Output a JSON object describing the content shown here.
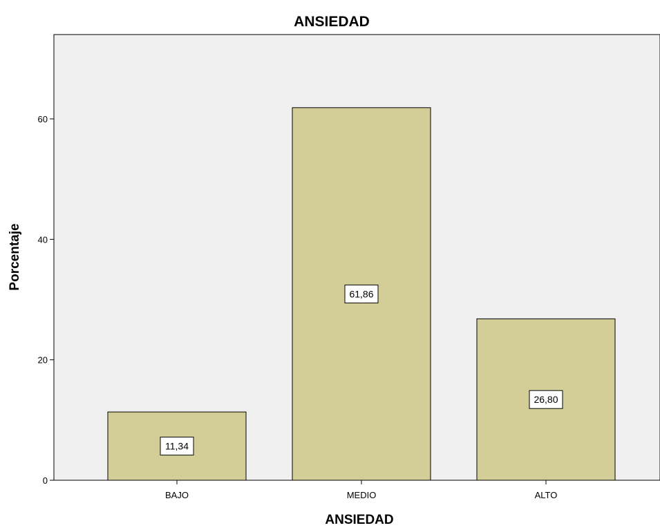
{
  "chart_data": {
    "type": "bar",
    "title": "ANSIEDAD",
    "xlabel": "ANSIEDAD",
    "ylabel": "Porcentaje",
    "categories": [
      "BAJO",
      "MEDIO",
      "ALTO"
    ],
    "values": [
      11.34,
      61.86,
      26.8
    ],
    "value_labels": [
      "11,34",
      "61,86",
      "26,80"
    ],
    "ylim": [
      0,
      74
    ],
    "yticks": [
      0,
      20,
      40,
      60
    ],
    "ytick_labels": [
      "0",
      "20",
      "40",
      "60"
    ],
    "grid": false,
    "colors": {
      "bar_fill": "#d3ce97",
      "bar_stroke": "#000000",
      "plot_background": "#f0f0f0",
      "label_box_fill": "#ffffff"
    }
  }
}
